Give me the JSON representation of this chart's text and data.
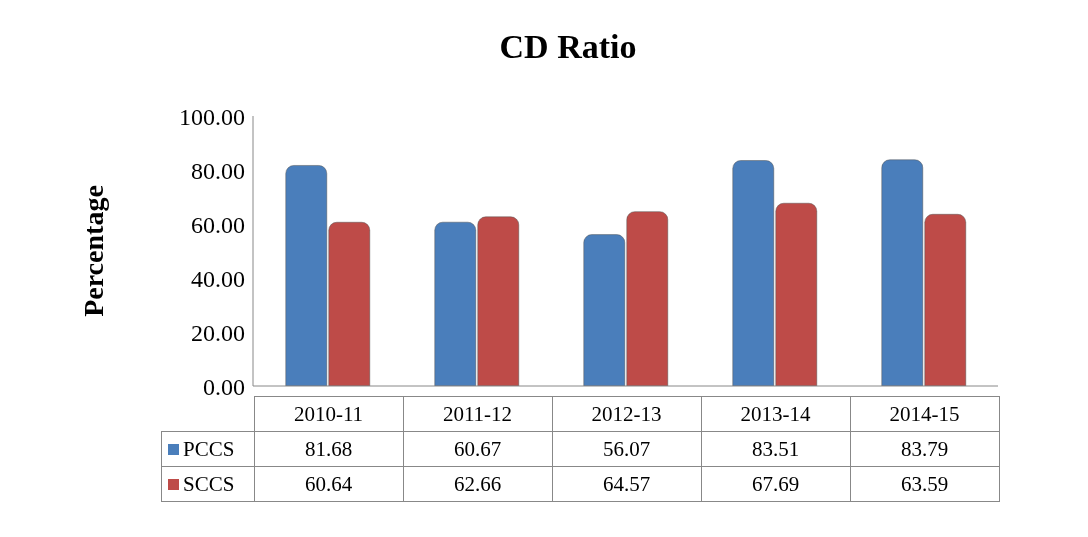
{
  "chart_data": {
    "type": "bar",
    "title": "CD Ratio",
    "ylabel": "Percentage",
    "categories": [
      "2010-11",
      "2011-12",
      "2012-13",
      "2013-14",
      "2014-15"
    ],
    "series": [
      {
        "name": "PCCS",
        "color": "#4a7ebb",
        "values": [
          81.68,
          60.67,
          56.07,
          83.51,
          83.79
        ]
      },
      {
        "name": "SCCS",
        "color": "#be4b48",
        "values": [
          60.64,
          62.66,
          64.57,
          67.69,
          63.59
        ]
      }
    ],
    "ylim": [
      0,
      100
    ],
    "yticks": [
      {
        "value": 0,
        "label": "0.00"
      },
      {
        "value": 20,
        "label": "20.00"
      },
      {
        "value": 40,
        "label": "40.00"
      },
      {
        "value": 60,
        "label": "60.00"
      },
      {
        "value": 80,
        "label": "80.00"
      },
      {
        "value": 100,
        "label": "100.00"
      }
    ],
    "grid": false,
    "legend": "bottom",
    "data_labels": true
  }
}
